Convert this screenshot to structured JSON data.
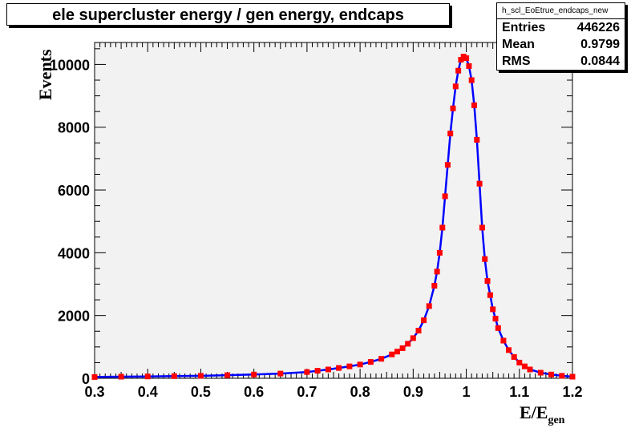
{
  "chart_data": {
    "type": "histogram",
    "title": "ele supercluster energy / gen energy, endcaps",
    "xlabel": "E/E",
    "xlabel_sub": "gen",
    "ylabel": "Events",
    "xlim": [
      0.3,
      1.2
    ],
    "ylim": [
      0,
      10700
    ],
    "xticks": [
      "0.3",
      "0.4",
      "0.5",
      "0.6",
      "0.7",
      "0.8",
      "0.9",
      "1",
      "1.1",
      "1.2"
    ],
    "yticks": [
      "0",
      "2000",
      "4000",
      "6000",
      "8000",
      "10000"
    ],
    "grid": false,
    "series": [
      {
        "name": "",
        "style": "line",
        "color": "#0000ff",
        "x": [
          0.3,
          0.35,
          0.4,
          0.45,
          0.5,
          0.55,
          0.6,
          0.65,
          0.7,
          0.72,
          0.74,
          0.76,
          0.78,
          0.8,
          0.82,
          0.84,
          0.86,
          0.87,
          0.88,
          0.89,
          0.9,
          0.91,
          0.92,
          0.93,
          0.94,
          0.945,
          0.95,
          0.955,
          0.96,
          0.965,
          0.97,
          0.975,
          0.98,
          0.985,
          0.99,
          0.995,
          1.0,
          1.005,
          1.01,
          1.015,
          1.02,
          1.025,
          1.03,
          1.035,
          1.04,
          1.045,
          1.05,
          1.055,
          1.06,
          1.07,
          1.08,
          1.09,
          1.1,
          1.11,
          1.12,
          1.14,
          1.16,
          1.18,
          1.2
        ],
        "y": [
          40,
          50,
          60,
          70,
          80,
          100,
          120,
          150,
          200,
          240,
          280,
          330,
          380,
          440,
          520,
          620,
          760,
          850,
          960,
          1100,
          1280,
          1520,
          1850,
          2300,
          2950,
          3400,
          4000,
          4800,
          5800,
          6800,
          7800,
          8600,
          9300,
          9800,
          10150,
          10250,
          10200,
          9950,
          9500,
          8700,
          7600,
          6200,
          4800,
          3800,
          3100,
          2650,
          2200,
          1900,
          1600,
          1200,
          900,
          680,
          500,
          380,
          280,
          180,
          120,
          80,
          50
        ]
      },
      {
        "name": "",
        "style": "markers",
        "color": "#ff0000",
        "x": [
          0.3,
          0.35,
          0.4,
          0.45,
          0.5,
          0.55,
          0.6,
          0.65,
          0.7,
          0.72,
          0.74,
          0.76,
          0.78,
          0.8,
          0.82,
          0.84,
          0.86,
          0.87,
          0.88,
          0.89,
          0.9,
          0.91,
          0.92,
          0.93,
          0.94,
          0.945,
          0.95,
          0.955,
          0.96,
          0.965,
          0.97,
          0.975,
          0.98,
          0.985,
          0.99,
          0.995,
          1.0,
          1.005,
          1.01,
          1.015,
          1.02,
          1.025,
          1.03,
          1.035,
          1.04,
          1.045,
          1.05,
          1.055,
          1.06,
          1.07,
          1.08,
          1.09,
          1.1,
          1.11,
          1.12,
          1.14,
          1.16,
          1.18,
          1.2
        ],
        "y": [
          40,
          50,
          60,
          70,
          80,
          100,
          120,
          150,
          200,
          240,
          280,
          330,
          380,
          440,
          520,
          620,
          760,
          850,
          960,
          1100,
          1280,
          1520,
          1850,
          2300,
          2950,
          3400,
          4000,
          4800,
          5800,
          6800,
          7800,
          8600,
          9300,
          9800,
          10150,
          10250,
          10200,
          9950,
          9500,
          8700,
          7600,
          6200,
          4800,
          3800,
          3100,
          2650,
          2200,
          1900,
          1600,
          1200,
          900,
          680,
          500,
          380,
          280,
          180,
          120,
          80,
          50
        ]
      }
    ],
    "plot_background": "#f2f2f2",
    "stats": {
      "name": "h_scl_EoEtrue_endcaps_new",
      "rows": [
        {
          "label": "Entries",
          "value": "446226"
        },
        {
          "label": "Mean",
          "value": "0.9799"
        },
        {
          "label": "RMS",
          "value": "0.0844"
        }
      ]
    }
  }
}
